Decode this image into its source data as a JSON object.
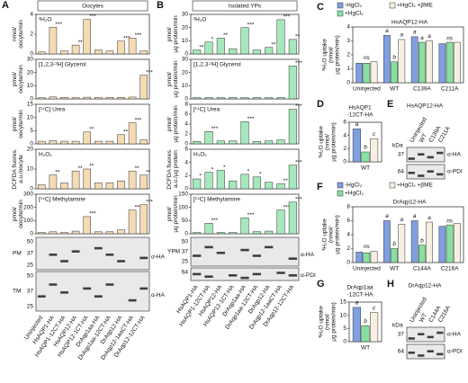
{
  "chart_data": [
    {
      "type": "panels",
      "panel": "A",
      "title": "Oocytes",
      "color": "#f4dbb4",
      "categories": [
        "Uninjected",
        "HsAQP1-HA",
        "HsAQP1-12CT-HA",
        "HsAQP12-HA",
        "HsAQP12-1CT-HA",
        "DrAqp1aa-HA",
        "DrAqp1aa-12CT-HA",
        "DrAqp12-HA",
        "DrAqp12-1aaCT-HA",
        "DrAqp12-12CT-HA"
      ],
      "subplots": [
        {
          "label": "³H₂O",
          "ylabel": [
            "nmol/",
            "oocyte/min"
          ],
          "ylim": [
            0,
            4
          ],
          "yticks": [
            0,
            2,
            4
          ],
          "values": [
            0.2,
            2.7,
            0.3,
            0.9,
            3.5,
            0.4,
            0.3,
            1.3,
            1.6,
            0.3
          ],
          "stars": [
            null,
            "***",
            null,
            "**",
            "***",
            null,
            null,
            "***",
            "***",
            null
          ]
        },
        {
          "label": "[1,2,3-³H] Glycerol",
          "ylabel": [
            "pmol/",
            "oocyte/min"
          ],
          "ylim": [
            0,
            30
          ],
          "yticks": [
            0,
            10,
            20,
            30
          ],
          "values": [
            1,
            1.5,
            1.2,
            1,
            1.3,
            1,
            1.1,
            1.2,
            1.4,
            18
          ],
          "stars": [
            null,
            null,
            null,
            null,
            null,
            null,
            null,
            null,
            null,
            "***"
          ]
        },
        {
          "label": "[¹⁴C] Urea",
          "ylabel": [
            "pmol/",
            "oocyte/min"
          ],
          "ylim": [
            0,
            15
          ],
          "yticks": [
            0,
            5,
            10,
            15
          ],
          "values": [
            1,
            1.2,
            1,
            1,
            4.5,
            1,
            1,
            3.5,
            8,
            1.5
          ],
          "stars": [
            null,
            null,
            null,
            null,
            "**",
            null,
            null,
            "**",
            "***",
            null
          ]
        },
        {
          "label": "H₂O₂",
          "ylabel": [
            "DCFDA fluores.",
            "a.u./oocyte"
          ],
          "ylim": [
            0,
            20
          ],
          "yticks": [
            0,
            10,
            20
          ],
          "values": [
            2,
            7,
            3,
            9,
            10,
            3,
            3,
            4,
            9,
            7
          ],
          "stars": [
            null,
            "**",
            null,
            "**",
            "**",
            null,
            null,
            null,
            "**",
            "**"
          ]
        },
        {
          "label": "[¹⁴C] Methylamine",
          "ylabel": [
            "pmol/",
            "oocyte/min"
          ],
          "ylim": [
            0,
            300
          ],
          "yticks": [
            0,
            100,
            200,
            300
          ],
          "values": [
            10,
            15,
            10,
            20,
            130,
            15,
            15,
            30,
            180,
            220
          ],
          "stars": [
            null,
            null,
            null,
            null,
            "***",
            null,
            null,
            null,
            "***",
            "***"
          ]
        }
      ],
      "blots": [
        {
          "name": "PM",
          "markers": [
            50,
            37,
            25
          ],
          "antibody": "α-HA"
        },
        {
          "name": "TM",
          "markers": [
            50,
            37,
            25
          ],
          "antibody": "α-HA"
        }
      ]
    },
    {
      "type": "panels",
      "panel": "B",
      "title": "Isolated YPs",
      "color": "#a4e8bb",
      "categories": [
        "HsAQP1-HA",
        "HsAQP1-12CT-HA",
        "HsAQP12-HA",
        "HsAQP12-1CT-HA",
        "DrAqp1aa-HA",
        "DrAqp1aa-12CT-HA",
        "DrAqp12-HA",
        "DrAqp12-1aaCT-HA",
        "DrAqp12-12CT-HA"
      ],
      "subplots": [
        {
          "label": "³H₂O",
          "ylabel": [
            "pmol/",
            "µg protein/min"
          ],
          "ylim": [
            0,
            30
          ],
          "yticks": [
            0,
            10,
            20,
            30
          ],
          "values": [
            3,
            9,
            12,
            4,
            20,
            3,
            5,
            26,
            11
          ],
          "stars": [
            "**",
            "*",
            "**",
            null,
            "***",
            null,
            "**",
            "***",
            "**"
          ]
        },
        {
          "label": "[1,2,3-³H] Glycerol",
          "ylabel": [
            "pmol/",
            "µg protein/min"
          ],
          "ylim": [
            0,
            30
          ],
          "yticks": [
            0,
            10,
            20,
            30
          ],
          "values": [
            1,
            1,
            1,
            1,
            1,
            1,
            1,
            1,
            25
          ],
          "stars": [
            null,
            null,
            null,
            null,
            null,
            null,
            null,
            null,
            "***"
          ]
        },
        {
          "label": "[¹⁴C] Urea",
          "ylabel": [
            "pmol/",
            "µg protein/min"
          ],
          "ylim": [
            0,
            8
          ],
          "yticks": [
            0,
            2,
            4,
            6,
            8
          ],
          "values": [
            0.5,
            2.5,
            0.6,
            0.6,
            4.5,
            0.5,
            0.6,
            0.8,
            7
          ],
          "stars": [
            null,
            "***",
            null,
            null,
            "***",
            null,
            null,
            null,
            "***"
          ]
        },
        {
          "label": "H₂O₂",
          "ylabel": [
            "DCFDA fluores.",
            "a.u./µg protein"
          ],
          "ylim": [
            0,
            6
          ],
          "yticks": [
            0,
            2,
            4,
            6
          ],
          "values": [
            1.5,
            2.5,
            2.8,
            1.2,
            2.2,
            1.8,
            1,
            0.8,
            3.6
          ],
          "stars": [
            "*",
            "*",
            "*",
            null,
            "*",
            "*",
            null,
            "**",
            "***"
          ]
        },
        {
          "label": "[¹⁴C] Methylamine",
          "ylabel": [
            "pmol/",
            "µg protein/min"
          ],
          "ylim": [
            0,
            150
          ],
          "yticks": [
            0,
            50,
            100,
            150
          ],
          "values": [
            5,
            40,
            5,
            5,
            60,
            8,
            10,
            90,
            120
          ],
          "stars": [
            null,
            "***",
            null,
            null,
            "***",
            null,
            null,
            "***",
            "***"
          ]
        }
      ],
      "blots": [
        {
          "name": "YPM",
          "markers": [
            50,
            37,
            25
          ],
          "antibody": "α-HA"
        },
        {
          "markers": [
            64
          ],
          "antibody": "α-PDI"
        }
      ]
    },
    {
      "type": "grouped",
      "panel": "C",
      "title": [
        "HsAQP12-HA"
      ],
      "ylabel": [
        "³H₂O uptake",
        "(nmol/",
        "µg protein/min)"
      ],
      "categories": [
        "Uninjected",
        "WT",
        "C139A",
        "C211A"
      ],
      "group_labels": [
        "ns",
        null,
        null,
        "ns"
      ],
      "ylim": [
        0,
        4
      ],
      "yticks": [
        0,
        1,
        2,
        3,
        4
      ],
      "series": [
        {
          "name": "-HgCl₂",
          "color": "#7f9fe0",
          "values": [
            1.4,
            3.4,
            3.3,
            2.8
          ],
          "letters": [
            null,
            "a",
            "a",
            null
          ]
        },
        {
          "name": "+HgCl₂",
          "color": "#86e0a0",
          "values": [
            1.4,
            1.5,
            2.9,
            2.9
          ],
          "letters": [
            null,
            "b",
            "a",
            null
          ]
        },
        {
          "name": "+HgCl₂ +βME",
          "color": "#f6f0e2",
          "values": [
            1.5,
            3.1,
            3.0,
            2.9
          ],
          "letters": [
            null,
            "a",
            "a",
            null
          ]
        }
      ]
    },
    {
      "type": "grouped",
      "panel": "D",
      "title": [
        "HsAQP1",
        "-12CT-HA"
      ],
      "ylabel": [
        "³H₂O uptake",
        "(nmol/",
        "µg protein/min)"
      ],
      "categories": [
        "WT"
      ],
      "ylim": [
        0,
        6
      ],
      "yticks": [
        0,
        2,
        4,
        6
      ],
      "series": [
        {
          "color": "#7f9fe0",
          "values": [
            5
          ],
          "letters": [
            "a"
          ]
        },
        {
          "color": "#86e0a0",
          "values": [
            1.5
          ],
          "letters": [
            "b"
          ]
        },
        {
          "color": "#f6f0e2",
          "values": [
            3.5
          ],
          "letters": [
            "c"
          ]
        }
      ]
    },
    {
      "type": "blot",
      "panel": "E",
      "title": "HsAQP12-HA",
      "lanes": [
        "Uninjected",
        "WT",
        "C139A",
        "C211A"
      ],
      "unit": "kDa",
      "markers": [
        37,
        64
      ],
      "antibodies": [
        "α-HA",
        "α-PDI"
      ]
    },
    {
      "type": "grouped",
      "panel": "F",
      "title": [
        "DrAqp12-HA"
      ],
      "ylabel": [
        "³H₂O uptake",
        "(nmol/",
        "µg protein/min)"
      ],
      "categories": [
        "Uninjected",
        "WT",
        "C144A",
        "C216A"
      ],
      "group_labels": [
        "ns",
        null,
        null,
        "ns"
      ],
      "ylim": [
        0,
        8
      ],
      "yticks": [
        0,
        2,
        4,
        6,
        8
      ],
      "series": [
        {
          "name": "-HgCl₂",
          "color": "#7f9fe0",
          "values": [
            1.5,
            6,
            6,
            5.2
          ],
          "letters": [
            null,
            "a",
            "a",
            null
          ]
        },
        {
          "name": "+HgCl₂",
          "color": "#86e0a0",
          "values": [
            1.4,
            2,
            2.5,
            5.4
          ],
          "letters": [
            null,
            "b",
            "b",
            null
          ]
        },
        {
          "name": "+HgCl₂ +βME",
          "color": "#f6f0e2",
          "values": [
            1.6,
            5.5,
            5.8,
            5.6
          ],
          "letters": [
            null,
            "a",
            "a",
            null
          ]
        }
      ]
    },
    {
      "type": "grouped",
      "panel": "G",
      "title": [
        "DrAqp1aa",
        "-12CT-HA"
      ],
      "ylabel": [
        "³H₂O uptake",
        "(nmol/",
        "µg protein/min)"
      ],
      "categories": [
        "WT"
      ],
      "ylim": [
        0,
        15
      ],
      "yticks": [
        0,
        5,
        10,
        15
      ],
      "series": [
        {
          "color": "#7f9fe0",
          "values": [
            13
          ],
          "letters": [
            "a"
          ]
        },
        {
          "color": "#86e0a0",
          "values": [
            6
          ],
          "letters": [
            "b"
          ]
        },
        {
          "color": "#f6f0e2",
          "values": [
            11
          ],
          "letters": [
            "c"
          ]
        }
      ]
    },
    {
      "type": "blot",
      "panel": "H",
      "title": "DrAqp12-HA",
      "lanes": [
        "Uninjected",
        "WT",
        "C144A",
        "C216A"
      ],
      "unit": "kDa",
      "markers": [
        37,
        64
      ],
      "antibodies": [
        "α-HA",
        "α-PDI"
      ]
    }
  ]
}
